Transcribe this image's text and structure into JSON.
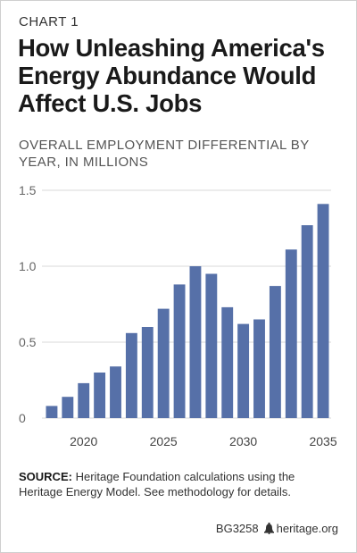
{
  "kicker": "CHART 1",
  "title": "How Unleashing America's Energy Abundance Would Affect U.S. Jobs",
  "subtitle": "OVERALL EMPLOYMENT DIFFERENTIAL BY YEAR, IN MILLIONS",
  "source_label": "SOURCE:",
  "source_text": "Heritage Foundation calculations using the Heritage Energy Model. See methodology for details.",
  "footer": {
    "code": "BG3258",
    "site": "heritage.org"
  },
  "colors": {
    "bar": "#5670a8",
    "grid": "#d9d9d9"
  },
  "chart_data": {
    "type": "bar",
    "title": "OVERALL EMPLOYMENT DIFFERENTIAL BY YEAR, IN MILLIONS",
    "xlabel": "",
    "ylabel": "",
    "categories": [
      2018,
      2019,
      2020,
      2021,
      2022,
      2023,
      2024,
      2025,
      2026,
      2027,
      2028,
      2029,
      2030,
      2031,
      2032,
      2033,
      2034,
      2035
    ],
    "values": [
      0.08,
      0.14,
      0.23,
      0.3,
      0.34,
      0.56,
      0.6,
      0.72,
      0.88,
      1.0,
      0.95,
      0.73,
      0.62,
      0.65,
      0.87,
      1.11,
      1.27,
      1.41
    ],
    "ylim": [
      0,
      1.5
    ],
    "y_ticks": [
      0,
      0.5,
      1.0,
      1.5
    ],
    "y_tick_labels": [
      "0",
      "0.5",
      "1.0",
      "1.5"
    ],
    "x_tick_labels": [
      "2020",
      "2025",
      "2030",
      "2035"
    ],
    "grid": true
  }
}
